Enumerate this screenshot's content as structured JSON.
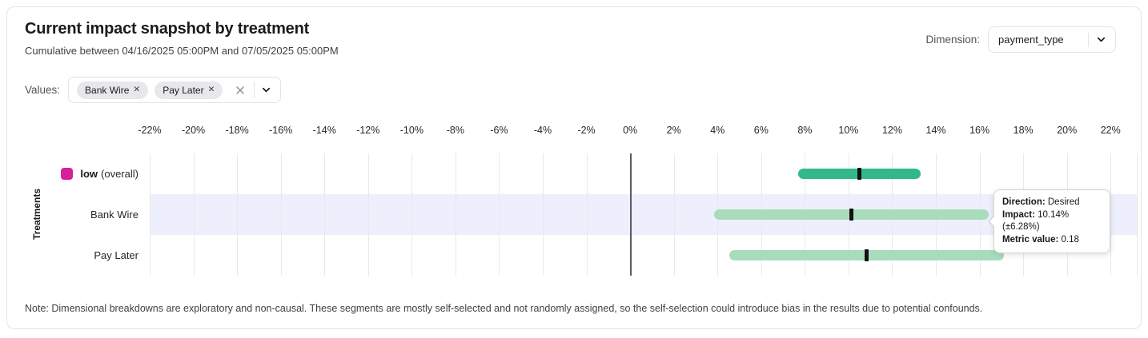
{
  "header": {
    "title": "Current impact snapshot by treatment",
    "subtitle": "Cumulative between 04/16/2025 05:00PM and 07/05/2025 05:00PM",
    "dimension_label": "Dimension:",
    "dimension_value": "payment_type"
  },
  "filters": {
    "label": "Values:",
    "chips": [
      "Bank Wire",
      "Pay Later"
    ]
  },
  "chart_data": {
    "type": "bar",
    "subtype": "horizontal-interval",
    "title": "Current impact snapshot by treatment",
    "ylabel": "Treatments",
    "xlabel": "",
    "x_axis": {
      "min": -22,
      "max": 23.2,
      "ticks": [
        -22,
        -20,
        -18,
        -16,
        -14,
        -12,
        -10,
        -8,
        -6,
        -4,
        -2,
        0,
        2,
        4,
        6,
        8,
        10,
        12,
        14,
        16,
        18,
        20,
        22
      ],
      "tick_suffix": "%",
      "zero_line": 0,
      "grid": true
    },
    "rows": [
      {
        "label": "low",
        "label_suffix": "(overall)",
        "legend_color": "#d6219c",
        "impact_pct": 10.5,
        "ci_low_pct": 7.7,
        "ci_high_pct": 13.3,
        "bar_color": "#33b989",
        "highlighted": false
      },
      {
        "label": "Bank Wire",
        "label_suffix": "",
        "legend_color": "",
        "impact_pct": 10.14,
        "ci_low_pct": 3.86,
        "ci_high_pct": 16.42,
        "bar_color": "#a9dcbd",
        "highlighted": true
      },
      {
        "label": "Pay Later",
        "label_suffix": "",
        "legend_color": "",
        "impact_pct": 10.83,
        "ci_low_pct": 4.54,
        "ci_high_pct": 17.12,
        "bar_color": "#a9dcbd",
        "highlighted": false
      }
    ]
  },
  "tooltip": {
    "direction_label": "Direction:",
    "direction_value": "Desired",
    "impact_label": "Impact:",
    "impact_value": "10.14% (±6.28%)",
    "metric_label": "Metric value:",
    "metric_value": "0.18"
  },
  "note": "Note: Dimensional breakdowns are exploratory and non-causal. These segments are mostly self-selected and not randomly assigned, so the self-selection could introduce bias in the results due to potential confounds."
}
